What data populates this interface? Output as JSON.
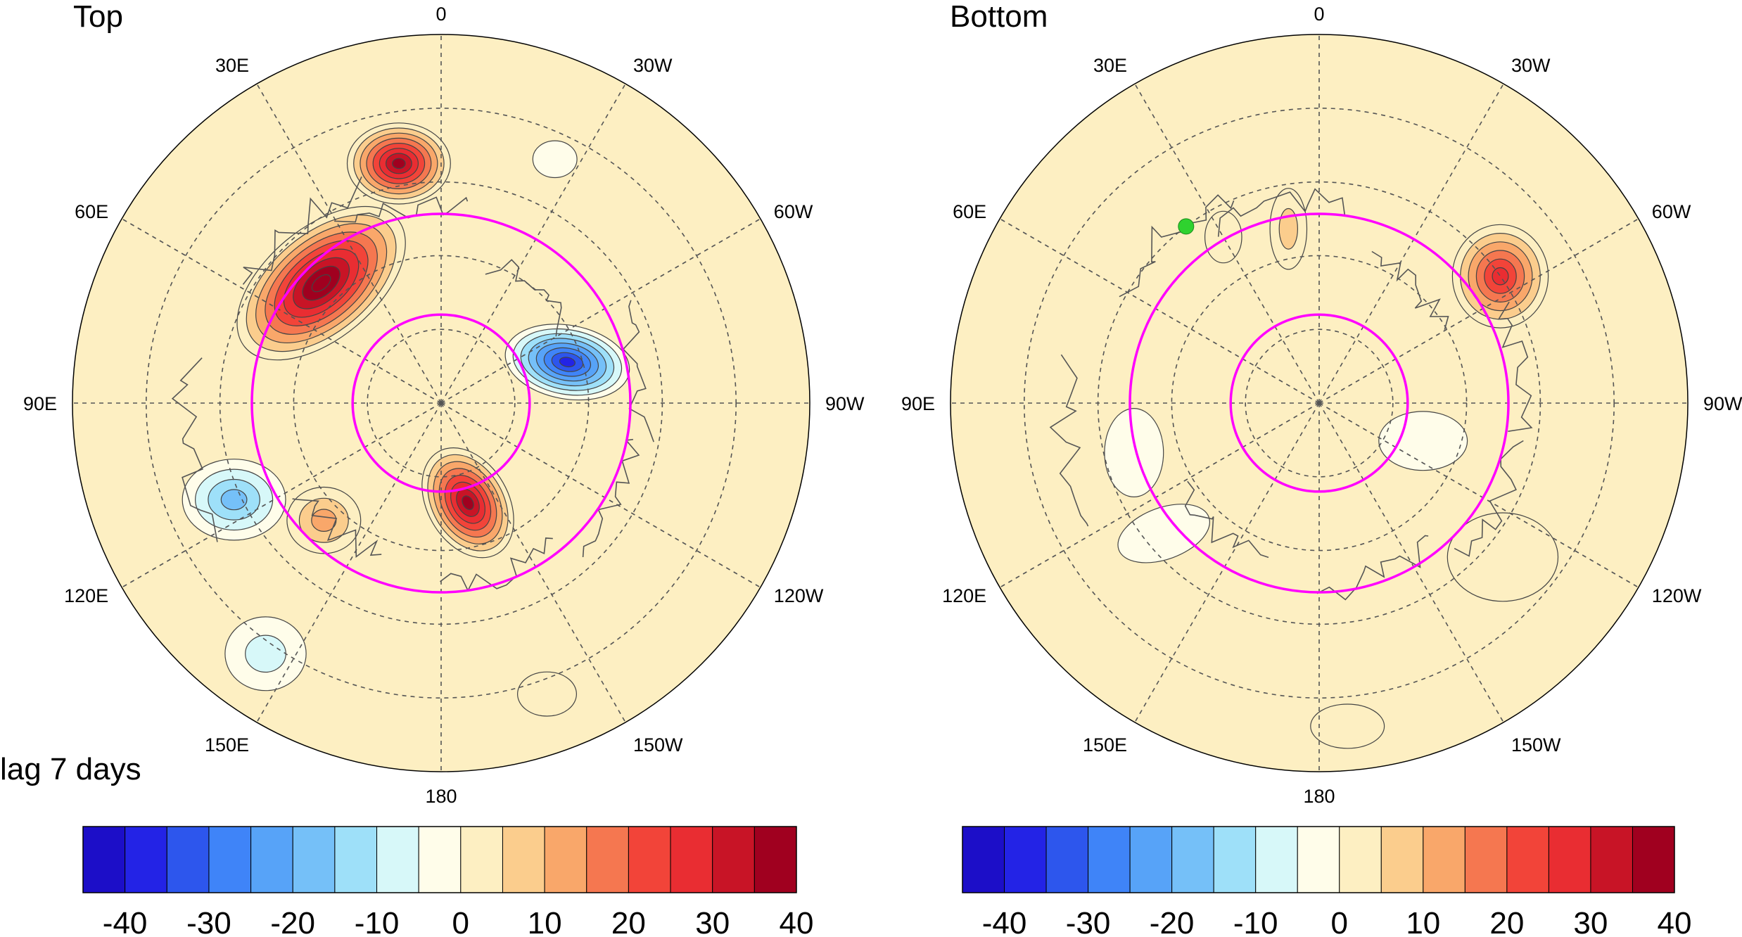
{
  "panels": [
    {
      "title": "Top",
      "lon_labels": [
        "0",
        "30W",
        "60W",
        "90W",
        "120W",
        "150W",
        "180",
        "150E",
        "120E",
        "90E",
        "60E",
        "30E"
      ],
      "lon_angles": [
        0,
        30,
        60,
        90,
        120,
        150,
        180,
        210,
        240,
        270,
        300,
        330
      ],
      "inner_circle_deg": 15,
      "outer_circle_deg": 35,
      "anomalies": [
        {
          "lon_deg": 315,
          "dist": 0.46,
          "value": 45,
          "sx": 0.27,
          "sy": 0.15,
          "rot": -40
        },
        {
          "lon_deg": 350,
          "dist": 0.66,
          "value": 40,
          "sx": 0.14,
          "sy": 0.11,
          "rot": 0
        },
        {
          "lon_deg": 165,
          "dist": 0.28,
          "value": 42,
          "sx": 0.16,
          "sy": 0.11,
          "rot": 60
        },
        {
          "lon_deg": 225,
          "dist": 0.45,
          "value": 16,
          "sx": 0.1,
          "sy": 0.09,
          "rot": 0
        },
        {
          "lon_deg": 72,
          "dist": 0.36,
          "value": -40,
          "sx": 0.17,
          "sy": 0.1,
          "rot": 10
        },
        {
          "lon_deg": 25,
          "dist": 0.73,
          "value": -9,
          "sx": 0.06,
          "sy": 0.05,
          "rot": 0
        },
        {
          "lon_deg": 245,
          "dist": 0.62,
          "value": -24,
          "sx": 0.14,
          "sy": 0.11,
          "rot": 0
        },
        {
          "lon_deg": 215,
          "dist": 0.83,
          "value": -12,
          "sx": 0.11,
          "sy": 0.1,
          "rot": 0
        },
        {
          "lon_deg": 160,
          "dist": 0.84,
          "value": 9,
          "sx": 0.08,
          "sy": 0.06,
          "rot": 0
        }
      ],
      "markers": []
    },
    {
      "title": "Bottom",
      "lon_labels": [
        "0",
        "30W",
        "60W",
        "90W",
        "120W",
        "150W",
        "180",
        "150E",
        "120E",
        "90E",
        "60E",
        "30E"
      ],
      "lon_angles": [
        0,
        30,
        60,
        90,
        120,
        150,
        180,
        210,
        240,
        270,
        300,
        330
      ],
      "inner_circle_deg": 15,
      "outer_circle_deg": 35,
      "anomalies": [
        {
          "lon_deg": 55,
          "dist": 0.6,
          "value": 30,
          "sx": 0.13,
          "sy": 0.14,
          "rot": 0
        },
        {
          "lon_deg": 350,
          "dist": 0.48,
          "value": 10,
          "sx": 0.05,
          "sy": 0.11,
          "rot": 0
        },
        {
          "lon_deg": 330,
          "dist": 0.52,
          "value": 9,
          "sx": 0.05,
          "sy": 0.07,
          "rot": 0
        },
        {
          "lon_deg": 255,
          "dist": 0.52,
          "value": -8,
          "sx": 0.08,
          "sy": 0.12,
          "rot": 0
        },
        {
          "lon_deg": 230,
          "dist": 0.55,
          "value": -9,
          "sx": 0.13,
          "sy": 0.07,
          "rot": -20
        },
        {
          "lon_deg": 130,
          "dist": 0.65,
          "value": 7,
          "sx": 0.15,
          "sy": 0.12,
          "rot": 0
        },
        {
          "lon_deg": 175,
          "dist": 0.88,
          "value": 7,
          "sx": 0.1,
          "sy": 0.06,
          "rot": 0
        },
        {
          "lon_deg": 110,
          "dist": 0.3,
          "value": -5,
          "sx": 0.12,
          "sy": 0.08,
          "rot": 0
        }
      ],
      "markers": [
        {
          "lon_deg": 323,
          "dist": 0.6,
          "color": "#2fd22f"
        }
      ]
    }
  ],
  "lag_label": "lag 7 days",
  "colorbar": {
    "ticks": [
      "-40",
      "-30",
      "-20",
      "-10",
      "0",
      "10",
      "20",
      "30",
      "40"
    ],
    "levels": [
      -40,
      -35,
      -30,
      -25,
      -20,
      -15,
      -10,
      -5,
      0,
      5,
      10,
      15,
      20,
      25,
      30,
      35,
      40
    ],
    "colors": [
      "#1c0ec8",
      "#2323e6",
      "#2d56ed",
      "#3f84f8",
      "#57a3f8",
      "#75c0f8",
      "#9ee0f9",
      "#d7f8f9",
      "#fffdea",
      "#fdefc2",
      "#fbcd8d",
      "#f9a76a",
      "#f57750",
      "#f24439",
      "#e92d32",
      "#c81426",
      "#a0001f"
    ]
  },
  "chart_data": {
    "type": "heatmap",
    "projection": "north polar stereographic",
    "panels": [
      "Top",
      "Bottom"
    ],
    "color_scale": {
      "min": -40,
      "max": 40,
      "step": 5
    },
    "lon_labels": [
      "0",
      "30W",
      "60W",
      "90W",
      "120W",
      "150W",
      "180",
      "150E",
      "120E",
      "90E",
      "60E",
      "30E"
    ]
  },
  "colors": {
    "contour": "#444444",
    "grid": "#555555",
    "coast": "#555555",
    "ring": "#ff00ff"
  }
}
